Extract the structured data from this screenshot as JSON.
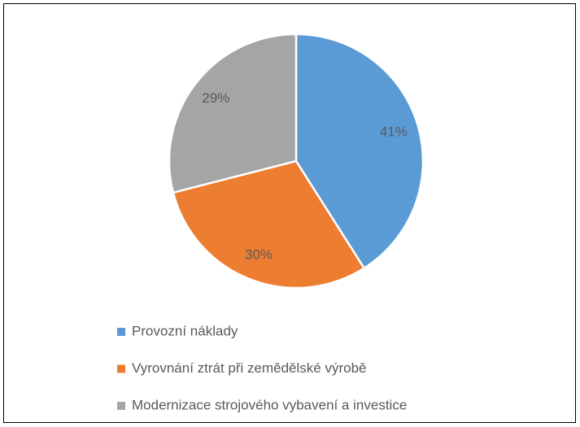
{
  "chart_data": {
    "type": "pie",
    "categories": [
      "Provozní náklady",
      "Vyrovnání ztrát při zemědělské výrobě",
      "Modernizace strojového vybavení a investice"
    ],
    "values": [
      41,
      30,
      29
    ],
    "value_labels": [
      "41%",
      "30%",
      "29%"
    ],
    "colors": [
      "#5b9bd5",
      "#ed7d31",
      "#a5a5a5"
    ],
    "legend": "bottom"
  }
}
